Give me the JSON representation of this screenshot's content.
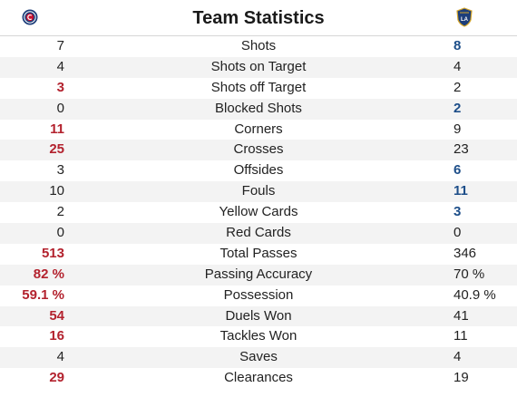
{
  "header": {
    "title": "Team Statistics",
    "home_logo_icon": "chicago-fire-crest-icon",
    "away_logo_icon": "la-galaxy-crest-icon"
  },
  "colors": {
    "home_lead": "#b3222e",
    "away_lead": "#1d4e89"
  },
  "stats": [
    {
      "label": "Shots",
      "home": "7",
      "away": "8",
      "lead": "away"
    },
    {
      "label": "Shots on Target",
      "home": "4",
      "away": "4",
      "lead": "none"
    },
    {
      "label": "Shots off Target",
      "home": "3",
      "away": "2",
      "lead": "home"
    },
    {
      "label": "Blocked Shots",
      "home": "0",
      "away": "2",
      "lead": "away"
    },
    {
      "label": "Corners",
      "home": "11",
      "away": "9",
      "lead": "home"
    },
    {
      "label": "Crosses",
      "home": "25",
      "away": "23",
      "lead": "home"
    },
    {
      "label": "Offsides",
      "home": "3",
      "away": "6",
      "lead": "away"
    },
    {
      "label": "Fouls",
      "home": "10",
      "away": "11",
      "lead": "away"
    },
    {
      "label": "Yellow Cards",
      "home": "2",
      "away": "3",
      "lead": "away"
    },
    {
      "label": "Red Cards",
      "home": "0",
      "away": "0",
      "lead": "none"
    },
    {
      "label": "Total Passes",
      "home": "513",
      "away": "346",
      "lead": "home"
    },
    {
      "label": "Passing Accuracy",
      "home": "82 %",
      "away": "70 %",
      "lead": "home"
    },
    {
      "label": "Possession",
      "home": "59.1 %",
      "away": "40.9 %",
      "lead": "home"
    },
    {
      "label": "Duels Won",
      "home": "54",
      "away": "41",
      "lead": "home"
    },
    {
      "label": "Tackles Won",
      "home": "16",
      "away": "11",
      "lead": "home"
    },
    {
      "label": "Saves",
      "home": "4",
      "away": "4",
      "lead": "none"
    },
    {
      "label": "Clearances",
      "home": "29",
      "away": "19",
      "lead": "home"
    }
  ]
}
